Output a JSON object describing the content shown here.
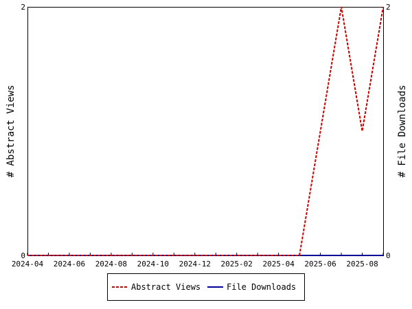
{
  "chart_data": {
    "type": "line",
    "x_dates": [
      "2024-04",
      "2024-05",
      "2024-06",
      "2024-07",
      "2024-08",
      "2024-09",
      "2024-10",
      "2024-11",
      "2024-12",
      "2025-01",
      "2025-02",
      "2025-03",
      "2025-04",
      "2025-05",
      "2025-06",
      "2025-07",
      "2025-08",
      "2025-09"
    ],
    "x_ticks": [
      "2024-04",
      "2024-06",
      "2024-08",
      "2024-10",
      "2024-12",
      "2025-02",
      "2025-04",
      "2025-06",
      "2025-08"
    ],
    "series": [
      {
        "name": "Abstract Views",
        "color": "#cc0000",
        "dash": true,
        "axis": "left",
        "values": [
          0,
          0,
          0,
          0,
          0,
          0,
          0,
          0,
          0,
          0,
          0,
          0,
          0,
          0,
          1,
          2,
          1,
          2
        ]
      },
      {
        "name": "File Downloads",
        "color": "#000099",
        "dash": false,
        "axis": "right",
        "values": [
          0,
          0,
          0,
          0,
          0,
          0,
          0,
          0,
          0,
          0,
          0,
          0,
          0,
          0,
          0,
          0,
          0,
          0
        ]
      }
    ],
    "ylabel_left": "# Abstract Views",
    "ylabel_right": "# File Downloads",
    "ylim_left": [
      0,
      2
    ],
    "ylim_right": [
      0,
      2
    ],
    "y_ticks_left": [
      "0",
      "2"
    ],
    "y_ticks_right": [
      "0",
      "2"
    ],
    "grid": false,
    "legend_position": "bottom"
  }
}
